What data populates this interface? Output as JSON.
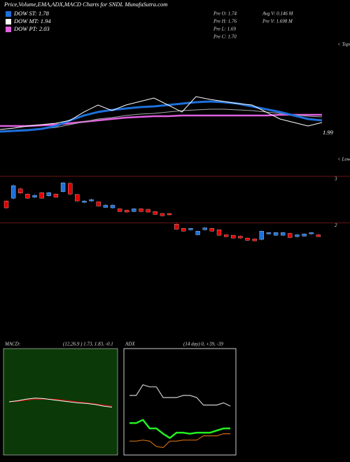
{
  "header": {
    "title": "Price,Volume,EMA,ADX,MACD Charts for SNDL MunafaSutra.com",
    "legend": [
      {
        "label": "DOW ST: 1.78",
        "color": "#1e6fd9"
      },
      {
        "label": "DOW MT: 1.94",
        "color": "#ffffff"
      },
      {
        "label": "DOW PT: 2.03",
        "color": "#e060e0"
      }
    ],
    "stats": [
      "Pre O: 1.74",
      "Pre H: 1.76",
      "Pre L: 1.69",
      "Pre C: 1.70",
      "Avg V: 0.146 M",
      "Pre V: 1.698 M"
    ]
  },
  "chart_data": [
    {
      "type": "line",
      "tops_label": "< Tops",
      "lows_label": "< Lows",
      "last_label": "1.99",
      "ylim": [
        0,
        170
      ],
      "series": [
        {
          "color": "#e060e0",
          "width": 2.5,
          "values": [
            50,
            50,
            50,
            51,
            52,
            54,
            56,
            58,
            60,
            62,
            63,
            64,
            64,
            65,
            65,
            65,
            65,
            65,
            65,
            65,
            66,
            66,
            66,
            66
          ]
        },
        {
          "color": "#aaaaaa",
          "width": 1,
          "values": [
            43,
            44,
            45,
            46,
            48,
            52,
            56,
            60,
            62,
            65,
            67,
            68,
            70,
            72,
            73,
            74,
            74,
            73,
            72,
            70,
            68,
            66,
            64,
            63
          ]
        },
        {
          "color": "#1e6fd9",
          "width": 3,
          "values": [
            42,
            43,
            44,
            46,
            50,
            58,
            65,
            70,
            73,
            75,
            77,
            78,
            80,
            82,
            84,
            85,
            84,
            82,
            78,
            74,
            70,
            65,
            60,
            58
          ]
        },
        {
          "color": "#ffffff",
          "width": 1,
          "values": [
            45,
            47,
            50,
            52,
            54,
            58,
            70,
            80,
            72,
            80,
            85,
            90,
            80,
            70,
            92,
            88,
            85,
            82,
            80,
            70,
            60,
            55,
            50,
            55
          ]
        }
      ]
    },
    {
      "type": "candlestick",
      "up_color": "#1e6fd9",
      "down_color": "#e00000",
      "ylim": [
        1.52,
        3.03
      ],
      "yticks": [
        2,
        3
      ],
      "open": [
        2.47,
        2.53,
        2.73,
        2.62,
        2.55,
        2.65,
        2.58,
        2.62,
        2.67,
        2.85,
        2.61,
        2.44,
        2.47,
        2.45,
        2.33,
        2.32,
        2.3,
        2.27,
        2.24,
        2.3,
        2.29,
        2.24,
        2.2,
        2.2,
        1.97,
        1.88,
        1.85,
        1.74,
        1.85,
        1.88,
        1.85,
        1.74,
        1.73,
        1.71,
        1.67,
        1.65,
        1.64,
        1.76,
        1.73,
        1.73,
        1.77,
        1.7,
        1.71,
        1.76,
        1.74
      ],
      "close": [
        2.32,
        2.8,
        2.64,
        2.53,
        2.59,
        2.53,
        2.65,
        2.55,
        2.86,
        2.62,
        2.47,
        2.47,
        2.5,
        2.36,
        2.38,
        2.38,
        2.24,
        2.23,
        2.3,
        2.24,
        2.23,
        2.18,
        2.15,
        2.17,
        1.86,
        1.82,
        1.88,
        1.82,
        1.89,
        1.82,
        1.73,
        1.7,
        1.67,
        1.67,
        1.62,
        1.61,
        1.82,
        1.79,
        1.79,
        1.79,
        1.68,
        1.74,
        1.76,
        1.79,
        1.7
      ],
      "high": [
        2.5,
        2.83,
        2.76,
        2.64,
        2.62,
        2.67,
        2.67,
        2.64,
        2.88,
        2.87,
        2.62,
        2.49,
        2.52,
        2.47,
        2.4,
        2.4,
        2.32,
        2.29,
        2.32,
        2.32,
        2.3,
        2.26,
        2.21,
        2.21,
        2.0,
        1.89,
        1.89,
        1.83,
        1.91,
        1.89,
        1.86,
        1.76,
        1.74,
        1.73,
        1.68,
        1.67,
        1.83,
        1.8,
        1.8,
        1.8,
        1.79,
        1.76,
        1.77,
        1.8,
        1.76
      ],
      "low": [
        2.3,
        2.5,
        2.62,
        2.52,
        2.53,
        2.52,
        2.56,
        2.53,
        2.65,
        2.59,
        2.45,
        2.42,
        2.45,
        2.35,
        2.32,
        2.3,
        2.23,
        2.21,
        2.23,
        2.23,
        2.21,
        2.17,
        2.14,
        2.15,
        1.85,
        1.8,
        1.83,
        1.73,
        1.83,
        1.8,
        1.71,
        1.68,
        1.65,
        1.65,
        1.61,
        1.59,
        1.62,
        1.74,
        1.71,
        1.71,
        1.67,
        1.68,
        1.7,
        1.74,
        1.69
      ]
    },
    {
      "type": "line",
      "title": "MACD:",
      "subtitle": "(12,26,9 ) 1.73, 1.83, -0.1",
      "background": "#0b3a08",
      "ylim": [
        -1,
        1
      ],
      "series": [
        {
          "color": "#e00000",
          "width": 1,
          "values": [
            0.0,
            0.01,
            0.03,
            0.05,
            0.05,
            0.05,
            0.04,
            0.02,
            0.0,
            -0.02,
            -0.04,
            -0.06,
            -0.08
          ]
        },
        {
          "color": "#ffffff",
          "width": 1,
          "values": [
            0.0,
            0.02,
            0.05,
            0.07,
            0.06,
            0.04,
            0.02,
            0.0,
            -0.02,
            -0.03,
            -0.05,
            -0.08,
            -0.1
          ]
        }
      ]
    },
    {
      "type": "line",
      "title": "ADX",
      "subtitle": "(14 day) 0, +39, -39",
      "ylim": [
        0,
        100
      ],
      "border": true,
      "series": [
        {
          "color": "#cccccc",
          "width": 1.2,
          "values": [
            56,
            56,
            66,
            64,
            64,
            54,
            54,
            54,
            56,
            56,
            54,
            47,
            47,
            47,
            49,
            46
          ]
        },
        {
          "color": "#22ee22",
          "width": 2.5,
          "values": [
            30,
            30,
            33,
            25,
            25,
            20,
            16,
            21,
            21,
            20,
            21,
            21,
            21,
            23,
            25,
            25
          ]
        },
        {
          "color": "#cc6a10",
          "width": 1.2,
          "values": [
            13,
            13,
            14,
            13,
            8,
            7,
            13,
            13,
            14,
            14,
            14,
            18,
            18,
            18,
            20,
            20
          ]
        }
      ]
    }
  ]
}
